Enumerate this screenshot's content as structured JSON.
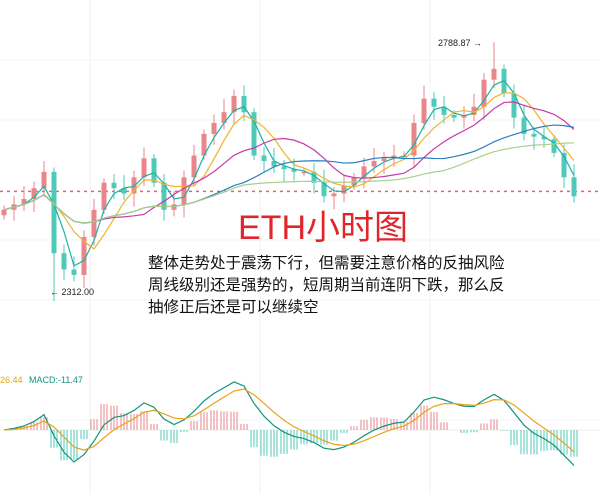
{
  "chart_data": {
    "type": "candlestick",
    "title": "ETH小时图",
    "annotation_lines": [
      "整体走势处于震荡下行，但需要注意价格的反抽风险",
      "周线级别还是强势的，短周期当前连阴下跌，那么反",
      "抽修正后还是可以继续空"
    ],
    "high_label": "2788.87",
    "low_label": "2312.00",
    "high_value": 2788.87,
    "low_value": 2312.0,
    "reference_line": 2514,
    "ylim": [
      2240,
      2830
    ],
    "closes": [
      2480,
      2490,
      2500,
      2520,
      2550,
      2400,
      2370,
      2360,
      2430,
      2480,
      2530,
      2520,
      2510,
      2540,
      2575,
      2530,
      2480,
      2490,
      2540,
      2580,
      2620,
      2640,
      2660,
      2690,
      2660,
      2580,
      2570,
      2560,
      2555,
      2550,
      2550,
      2530,
      2505,
      2510,
      2525,
      2540,
      2560,
      2570,
      2575,
      2580,
      2580,
      2640,
      2685,
      2670,
      2655,
      2650,
      2655,
      2670,
      2720,
      2740,
      2695,
      2650,
      2620,
      2615,
      2610,
      2585,
      2540,
      2505
    ],
    "ma_periods": [
      3,
      5,
      10,
      20,
      40
    ],
    "colors": {
      "up": "#e8868a",
      "down": "#4fc9b9",
      "ma": [
        "#19b3a3",
        "#f0b429",
        "#c43aa8",
        "#2a7fc1",
        "#a9cf8a"
      ],
      "title": "#e0262b",
      "ref": "#d9686e",
      "dea": "#e8a317",
      "dif": "#13957a"
    },
    "macd": {
      "dea_label": "26.44",
      "macd_label": "MACD:-11.47"
    }
  }
}
